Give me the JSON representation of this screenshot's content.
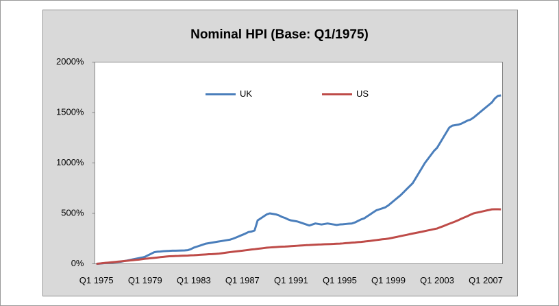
{
  "chart_data": {
    "type": "line",
    "title": "Nominal HPI (Base: Q1/1975)",
    "categories": [
      "Q1 1975",
      null,
      null,
      null,
      null,
      null,
      null,
      null,
      null,
      null,
      null,
      null,
      null,
      null,
      null,
      null,
      "Q1 1979",
      null,
      null,
      null,
      null,
      null,
      null,
      null,
      null,
      null,
      null,
      null,
      null,
      null,
      null,
      null,
      "Q1 1983",
      null,
      null,
      null,
      null,
      null,
      null,
      null,
      null,
      null,
      null,
      null,
      null,
      null,
      null,
      null,
      "Q1 1987",
      null,
      null,
      null,
      null,
      null,
      null,
      null,
      null,
      null,
      null,
      null,
      null,
      null,
      null,
      null,
      "Q1 1991",
      null,
      null,
      null,
      null,
      null,
      null,
      null,
      null,
      null,
      null,
      null,
      null,
      null,
      null,
      null,
      "Q1 1995",
      null,
      null,
      null,
      null,
      null,
      null,
      null,
      null,
      null,
      null,
      null,
      null,
      null,
      null,
      null,
      "Q1 1999",
      null,
      null,
      null,
      null,
      null,
      null,
      null,
      null,
      null,
      null,
      null,
      null,
      null,
      null,
      null,
      "Q1 2003",
      null,
      null,
      null,
      null,
      null,
      null,
      null,
      null,
      null,
      null,
      null,
      null,
      null,
      null,
      null,
      "Q1 2007",
      null,
      null,
      null,
      null,
      null
    ],
    "series": [
      {
        "name": "UK",
        "color": "#4a7ebb",
        "values": [
          0,
          2,
          5,
          8,
          10,
          13,
          15,
          18,
          20,
          26,
          32,
          38,
          44,
          50,
          56,
          62,
          70,
          85,
          100,
          115,
          120,
          122,
          125,
          127,
          128,
          130,
          130,
          131,
          132,
          133,
          135,
          145,
          160,
          170,
          180,
          190,
          200,
          205,
          210,
          215,
          220,
          225,
          230,
          235,
          240,
          250,
          262,
          275,
          287,
          300,
          315,
          320,
          330,
          430,
          450,
          470,
          490,
          500,
          495,
          490,
          480,
          465,
          455,
          440,
          430,
          425,
          420,
          410,
          400,
          390,
          380,
          390,
          400,
          395,
          390,
          395,
          400,
          395,
          390,
          385,
          390,
          392,
          395,
          398,
          400,
          410,
          425,
          440,
          450,
          470,
          490,
          510,
          530,
          540,
          550,
          560,
          580,
          605,
          630,
          655,
          680,
          710,
          740,
          770,
          800,
          850,
          900,
          950,
          1000,
          1040,
          1080,
          1120,
          1150,
          1200,
          1250,
          1300,
          1350,
          1370,
          1375,
          1380,
          1390,
          1405,
          1420,
          1430,
          1450,
          1475,
          1500,
          1525,
          1550,
          1575,
          1600,
          1640,
          1665,
          1670
        ]
      },
      {
        "name": "US",
        "color": "#be4b48",
        "values": [
          0,
          3,
          6,
          9,
          12,
          15,
          18,
          21,
          24,
          27,
          30,
          33,
          36,
          39,
          42,
          46,
          50,
          53,
          56,
          59,
          62,
          66,
          69,
          72,
          75,
          76,
          77,
          78,
          80,
          81,
          82,
          84,
          85,
          87,
          89,
          91,
          93,
          95,
          96,
          98,
          100,
          104,
          108,
          112,
          116,
          120,
          123,
          127,
          130,
          134,
          138,
          142,
          145,
          149,
          152,
          156,
          160,
          162,
          164,
          166,
          168,
          170,
          171,
          173,
          175,
          177,
          179,
          181,
          183,
          185,
          186,
          188,
          190,
          191,
          192,
          194,
          195,
          196,
          197,
          199,
          200,
          202,
          205,
          207,
          210,
          212,
          215,
          217,
          220,
          224,
          227,
          231,
          235,
          239,
          243,
          246,
          250,
          256,
          262,
          268,
          275,
          281,
          287,
          294,
          300,
          306,
          312,
          318,
          325,
          331,
          337,
          344,
          350,
          362,
          373,
          385,
          397,
          408,
          420,
          433,
          447,
          460,
          473,
          487,
          500,
          507,
          513,
          520,
          527,
          533,
          540,
          541,
          541,
          540
        ]
      }
    ],
    "ylim": [
      0,
      2000
    ],
    "yticks": [
      {
        "value": 0,
        "label": "0%"
      },
      {
        "value": 500,
        "label": "500%"
      },
      {
        "value": 1000,
        "label": "1000%"
      },
      {
        "value": 1500,
        "label": "1500%"
      },
      {
        "value": 2000,
        "label": "2000%"
      }
    ],
    "grid": false,
    "legend": "top"
  }
}
